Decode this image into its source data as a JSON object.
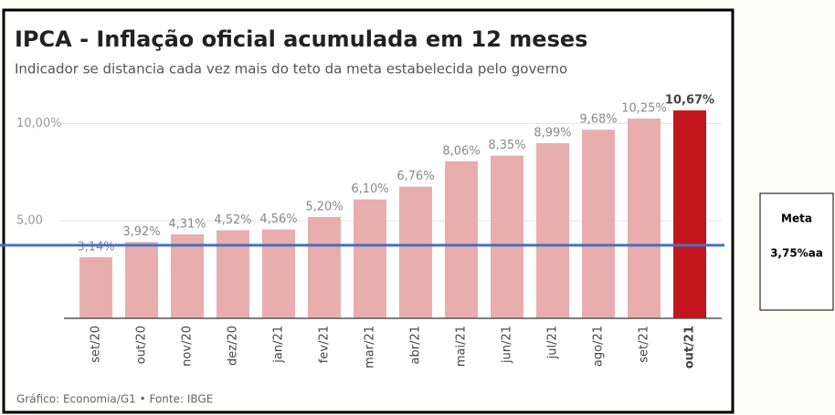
{
  "chart_data": {
    "type": "bar",
    "title": "IPCA - Inflação oficial acumulada em 12 meses",
    "subtitle": "Indicador se distancia cada vez mais do teto da meta estabelecida pelo governo",
    "source": "Gráfico: Economia/G1 • Fonte: IBGE",
    "categories": [
      "set/20",
      "out/20",
      "nov/20",
      "dez/20",
      "jan/21",
      "fev/21",
      "mar/21",
      "abr/21",
      "mai/21",
      "jun/21",
      "jul/21",
      "ago/21",
      "set/21",
      "out/21"
    ],
    "values": [
      3.14,
      3.92,
      4.31,
      4.52,
      4.56,
      5.2,
      6.1,
      6.76,
      8.06,
      8.35,
      8.99,
      9.68,
      10.25,
      10.67
    ],
    "value_labels": [
      "3,14%",
      "3,92%",
      "4,31%",
      "4,52%",
      "4,56%",
      "5,20%",
      "6,10%",
      "6,76%",
      "8,06%",
      "8,35%",
      "8,99%",
      "9,68%",
      "10,25%",
      "10,67%"
    ],
    "colors": [
      "#e8aeae",
      "#e8aeae",
      "#e8aeae",
      "#e8aeae",
      "#e8aeae",
      "#e8aeae",
      "#e8aeae",
      "#e8aeae",
      "#e8aeae",
      "#e8aeae",
      "#e8aeae",
      "#e8aeae",
      "#e8aeae",
      "#c3161c"
    ],
    "ylim": [
      0,
      11
    ],
    "yticks": [
      {
        "value": 5,
        "label": "5,00"
      },
      {
        "value": 10,
        "label": "10,00%"
      }
    ],
    "grid": true,
    "annotation": {
      "title": "Meta",
      "label": "3,75%aa",
      "value": 3.75,
      "color": "#4472c4"
    }
  }
}
